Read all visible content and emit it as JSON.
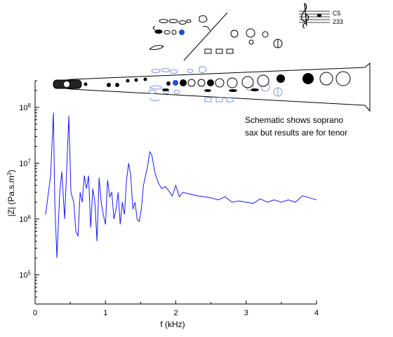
{
  "chart_data": {
    "type": "line",
    "xlabel": "f (kHz)",
    "ylabel_main": "|Z| (Pa.s.m",
    "ylabel_sup": "3",
    "ylabel_close": ")",
    "xlim": [
      0,
      4
    ],
    "ylim": [
      30000,
      300000000
    ],
    "y_scale": "log",
    "x_ticks": [
      0,
      1,
      2,
      3,
      4
    ],
    "x_tick_labels": [
      "0",
      "1",
      "2",
      "3",
      "4"
    ],
    "y_ticks": [
      {
        "value": 100000,
        "base": "10",
        "exp": "5"
      },
      {
        "value": 1000000,
        "base": "10",
        "exp": "6"
      },
      {
        "value": 10000000,
        "base": "10",
        "exp": "7"
      },
      {
        "value": 100000000,
        "base": "10",
        "exp": "8"
      }
    ],
    "grid": false,
    "line_color": "#1a1aff",
    "series": [
      {
        "x": [
          0.15,
          0.22,
          0.26,
          0.28,
          0.31,
          0.35,
          0.38,
          0.42,
          0.45,
          0.48,
          0.51,
          0.55,
          0.58,
          0.61,
          0.64,
          0.67,
          0.7,
          0.73,
          0.76,
          0.79,
          0.82,
          0.85,
          0.88,
          0.91,
          0.94,
          0.97,
          1.0,
          1.03,
          1.06,
          1.09,
          1.12,
          1.15,
          1.18,
          1.21,
          1.24,
          1.27,
          1.3,
          1.33,
          1.36,
          1.39,
          1.42,
          1.45,
          1.48,
          1.51,
          1.54,
          1.57,
          1.6,
          1.63,
          1.66,
          1.7,
          1.75,
          1.8,
          1.85,
          1.9,
          1.95,
          2.0,
          2.05,
          2.1,
          2.2,
          2.3,
          2.4,
          2.5,
          2.6,
          2.7,
          2.8,
          2.9,
          3.0,
          3.1,
          3.2,
          3.3,
          3.4,
          3.5,
          3.6,
          3.7,
          3.8,
          3.9,
          4.0
        ],
        "y": [
          1200000,
          6000000,
          80000000,
          2000000,
          200000,
          3000000,
          7000000,
          1000000,
          8000000,
          70000000,
          3000000,
          2000000,
          600000,
          500000,
          3000000,
          2000000,
          6000000,
          3500000,
          6000000,
          700000,
          3500000,
          2000000,
          400000,
          5500000,
          2000000,
          1200000,
          800000,
          5000000,
          2500000,
          3000000,
          1000000,
          1500000,
          3000000,
          800000,
          2000000,
          1200000,
          5000000,
          10000000,
          6000000,
          1500000,
          2000000,
          1000000,
          900000,
          1500000,
          4000000,
          6000000,
          9000000,
          16000000,
          14000000,
          7000000,
          4500000,
          3500000,
          3800000,
          3200000,
          2600000,
          4000000,
          2500000,
          3000000,
          2800000,
          2600000,
          2500000,
          2400000,
          2200000,
          2500000,
          2000000,
          2100000,
          2000000,
          1900000,
          2300000,
          2000000,
          2200000,
          2000000,
          2200000,
          2000000,
          2600000,
          2400000,
          2200000
        ]
      }
    ]
  },
  "annotation": {
    "line1": "Schematic shows soprano",
    "line2": "sax but results are for tenor"
  },
  "note_label": {
    "pitch": "C5",
    "number": "233"
  },
  "colors": {
    "keys_filled": "#000000",
    "keys_blue": "#1f4fd0",
    "keys_outline_blue": "#7a96d8"
  }
}
